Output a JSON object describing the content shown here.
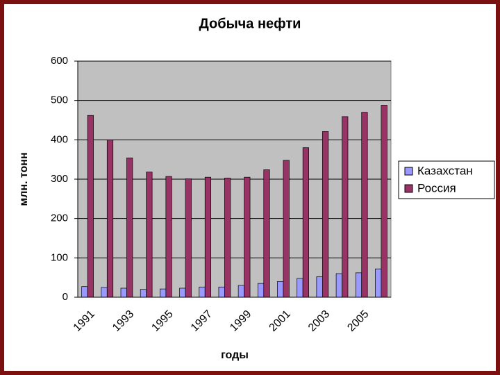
{
  "chart_data": {
    "type": "bar",
    "title": "Добыча нефти",
    "x_label": "годы",
    "y_label": "млн. тонн",
    "categories": [
      "1991",
      null,
      "1993",
      null,
      "1995",
      null,
      "1997",
      null,
      "1999",
      null,
      "2001",
      null,
      "2003",
      null,
      "2005",
      null
    ],
    "series": [
      {
        "name": "Казахстан",
        "color": "#9999ff",
        "values": [
          27,
          25,
          23,
          20,
          21,
          23,
          26,
          26,
          30,
          35,
          40,
          48,
          52,
          60,
          62,
          72
        ]
      },
      {
        "name": "Россия",
        "color": "#993366",
        "values": [
          462,
          400,
          354,
          318,
          307,
          301,
          305,
          303,
          305,
          324,
          348,
          380,
          421,
          459,
          470,
          488
        ]
      }
    ],
    "ylim": [
      0,
      600
    ],
    "yticks": [
      0,
      100,
      200,
      300,
      400,
      500,
      600
    ],
    "grid": true,
    "legend": "right"
  }
}
